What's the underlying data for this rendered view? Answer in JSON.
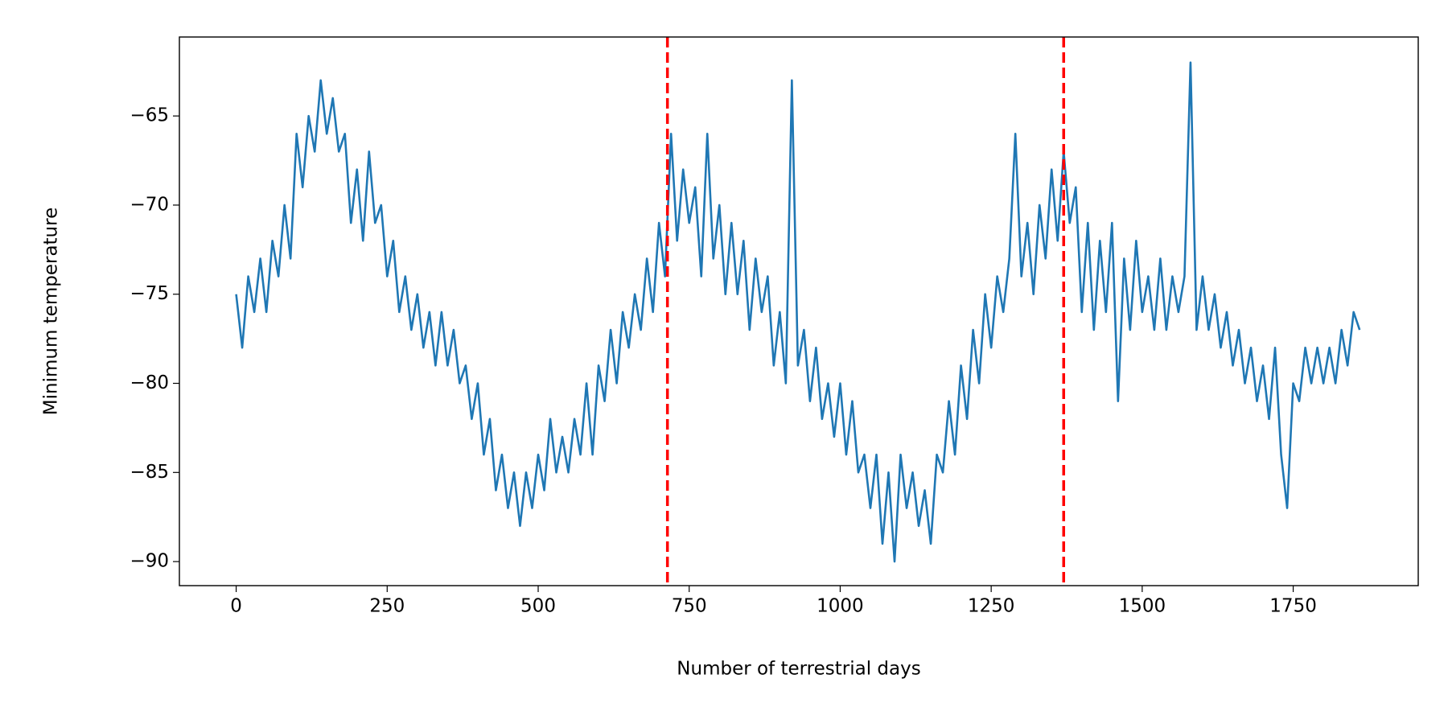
{
  "chart_data": {
    "type": "line",
    "xlabel": "Number of terrestrial days",
    "ylabel": "Minimum temperature",
    "color": "#1f77b4",
    "x": [
      0,
      10,
      20,
      30,
      40,
      50,
      60,
      70,
      80,
      90,
      100,
      110,
      120,
      130,
      140,
      150,
      160,
      170,
      180,
      190,
      200,
      210,
      220,
      230,
      240,
      250,
      260,
      270,
      280,
      290,
      300,
      310,
      320,
      330,
      340,
      350,
      360,
      370,
      380,
      390,
      400,
      410,
      420,
      430,
      440,
      450,
      460,
      470,
      480,
      490,
      500,
      510,
      520,
      530,
      540,
      550,
      560,
      570,
      580,
      590,
      600,
      610,
      620,
      630,
      640,
      650,
      660,
      670,
      680,
      690,
      700,
      710,
      720,
      730,
      740,
      750,
      760,
      770,
      780,
      790,
      800,
      810,
      820,
      830,
      840,
      850,
      860,
      870,
      880,
      890,
      900,
      910,
      920,
      930,
      940,
      950,
      960,
      970,
      980,
      990,
      1000,
      1010,
      1020,
      1030,
      1040,
      1050,
      1060,
      1070,
      1080,
      1090,
      1100,
      1110,
      1120,
      1130,
      1140,
      1150,
      1160,
      1170,
      1180,
      1190,
      1200,
      1210,
      1220,
      1230,
      1240,
      1250,
      1260,
      1270,
      1280,
      1290,
      1300,
      1310,
      1320,
      1330,
      1340,
      1350,
      1360,
      1370,
      1380,
      1390,
      1400,
      1410,
      1420,
      1430,
      1440,
      1450,
      1460,
      1470,
      1480,
      1490,
      1500,
      1510,
      1520,
      1530,
      1540,
      1550,
      1560,
      1570,
      1580,
      1590,
      1600,
      1610,
      1620,
      1630,
      1640,
      1650,
      1660,
      1670,
      1680,
      1690,
      1700,
      1710,
      1720,
      1730,
      1740,
      1750,
      1760,
      1770,
      1780,
      1790,
      1800,
      1810,
      1820,
      1830,
      1840,
      1850,
      1860
    ],
    "values": [
      -75,
      -78,
      -74,
      -76,
      -73,
      -76,
      -72,
      -74,
      -70,
      -73,
      -66,
      -69,
      -65,
      -67,
      -63,
      -66,
      -64,
      -67,
      -66,
      -71,
      -68,
      -72,
      -67,
      -71,
      -70,
      -74,
      -72,
      -76,
      -74,
      -77,
      -75,
      -78,
      -76,
      -79,
      -76,
      -79,
      -77,
      -80,
      -79,
      -82,
      -80,
      -84,
      -82,
      -86,
      -84,
      -87,
      -85,
      -88,
      -85,
      -87,
      -84,
      -86,
      -82,
      -85,
      -83,
      -85,
      -82,
      -84,
      -80,
      -84,
      -79,
      -81,
      -77,
      -80,
      -76,
      -78,
      -75,
      -77,
      -73,
      -76,
      -71,
      -74,
      -66,
      -72,
      -68,
      -71,
      -69,
      -74,
      -66,
      -73,
      -70,
      -75,
      -71,
      -75,
      -72,
      -77,
      -73,
      -76,
      -74,
      -79,
      -76,
      -80,
      -63,
      -79,
      -77,
      -81,
      -78,
      -82,
      -80,
      -83,
      -80,
      -84,
      -81,
      -85,
      -84,
      -87,
      -84,
      -89,
      -85,
      -90,
      -84,
      -87,
      -85,
      -88,
      -86,
      -89,
      -84,
      -85,
      -81,
      -84,
      -79,
      -82,
      -77,
      -80,
      -75,
      -78,
      -74,
      -76,
      -73,
      -66,
      -74,
      -71,
      -75,
      -70,
      -73,
      -68,
      -72,
      -67,
      -71,
      -69,
      -76,
      -71,
      -77,
      -72,
      -76,
      -71,
      -81,
      -73,
      -77,
      -72,
      -76,
      -74,
      -77,
      -73,
      -77,
      -74,
      -76,
      -74,
      -62,
      -77,
      -74,
      -77,
      -75,
      -78,
      -76,
      -79,
      -77,
      -80,
      -78,
      -81,
      -79,
      -82,
      -78,
      -84,
      -87,
      -80,
      -81,
      -78,
      -80,
      -78,
      -80,
      -78,
      -80,
      -77,
      -79,
      -76,
      -77
    ],
    "vlines": [
      714,
      1370
    ],
    "vline_color": "#ff0000",
    "xlim": [
      -94,
      1957
    ],
    "ylim": [
      -91.35,
      -60.57
    ],
    "xticks": [
      0,
      250,
      500,
      750,
      1000,
      1250,
      1500,
      1750
    ],
    "yticks": [
      {
        "value": -90,
        "label": "−90"
      },
      {
        "value": -85,
        "label": "−85"
      },
      {
        "value": -80,
        "label": "−80"
      },
      {
        "value": -75,
        "label": "−75"
      },
      {
        "value": -70,
        "label": "−70"
      },
      {
        "value": -65,
        "label": "−65"
      }
    ]
  }
}
